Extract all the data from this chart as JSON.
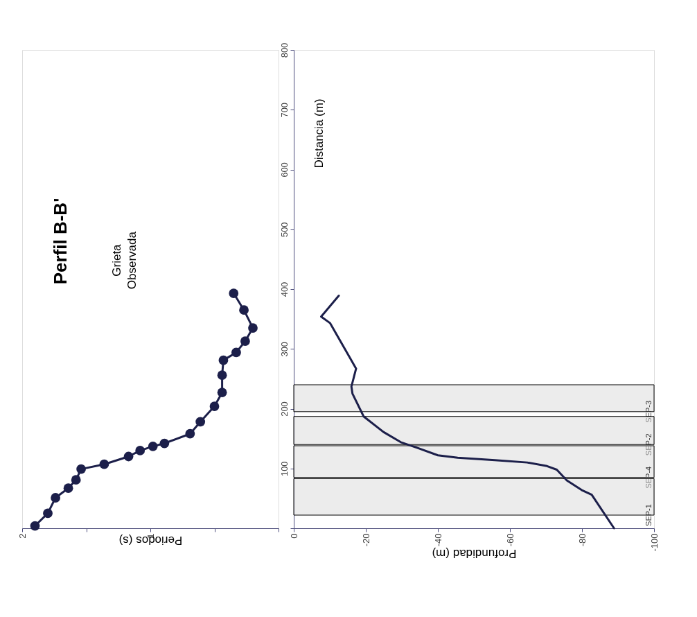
{
  "chart_data": [
    {
      "type": "line",
      "title": "Perfil B-B'",
      "xlabel": "Periodos (s)",
      "marker": "circle",
      "line_style": "solid",
      "grid": false,
      "tick_labels": "x",
      "xlim": [
        2,
        0
      ],
      "xticks": [
        2,
        {
          "value": 1.5,
          "label": null
        },
        1,
        {
          "value": 0.5,
          "label": null
        },
        {
          "value": 0,
          "label": null
        }
      ],
      "ylim": [
        0,
        800
      ],
      "yticks": [
        0,
        100,
        200,
        300,
        400,
        500,
        600,
        700,
        800
      ],
      "series": [
        {
          "color": "#1c1f4a",
          "x": [
            1.9,
            1.8,
            1.74,
            1.64,
            1.58,
            1.54,
            1.36,
            1.17,
            1.08,
            0.98,
            0.89,
            0.69,
            0.61,
            0.5,
            0.44,
            0.44,
            0.43,
            0.33,
            0.26,
            0.2,
            0.27,
            0.35
          ],
          "values": [
            4,
            25,
            51,
            67,
            81,
            99,
            107,
            120,
            130,
            137,
            142,
            158,
            178,
            204,
            227,
            256,
            281,
            294,
            313,
            335,
            365,
            393
          ]
        }
      ],
      "annotations": [
        "Grieta Observada"
      ]
    },
    {
      "type": "line",
      "xlabel": "Profundidad (m)",
      "ylabel": "Distancia (m)",
      "line_style": "solid",
      "grid": false,
      "xlim": [
        0,
        -100
      ],
      "xticks": [
        0,
        -20,
        -40,
        -60,
        -80,
        -100
      ],
      "ylim": [
        0,
        800
      ],
      "yticks": [
        {
          "value": 0,
          "label": null
        },
        100,
        200,
        300,
        400,
        500,
        600,
        700,
        800
      ],
      "series": [
        {
          "color": "#1c1f4a",
          "x": [
            -88.9,
            -82.7,
            -79.9,
            -75.8,
            -73.0,
            -70.3,
            -64.8,
            -55.8,
            -45.5,
            -40.0,
            -34.5,
            -29.7,
            -24.9,
            -19.4,
            -16.3,
            -16.0,
            -17.3,
            -10.1,
            -7.6,
            -12.5
          ],
          "values": [
            0,
            56,
            64,
            80,
            98,
            104,
            110,
            114,
            118,
            122,
            134,
            144,
            161,
            187,
            225,
            237,
            267,
            343,
            354,
            389
          ]
        }
      ],
      "bands": [
        {
          "axis": "y",
          "from": 195,
          "to": 240,
          "label": "SEP-3",
          "color": "#d9d9d9"
        },
        {
          "axis": "y",
          "from": 140,
          "to": 187,
          "label": "SEP-2",
          "color": "#d9d9d9"
        },
        {
          "axis": "y",
          "from": 85,
          "to": 138,
          "label": "SEP-4",
          "color": "#d9d9d9"
        },
        {
          "axis": "y",
          "from": 22,
          "to": 83,
          "label": "SEP-1",
          "color": "#d9d9d9"
        }
      ]
    }
  ]
}
